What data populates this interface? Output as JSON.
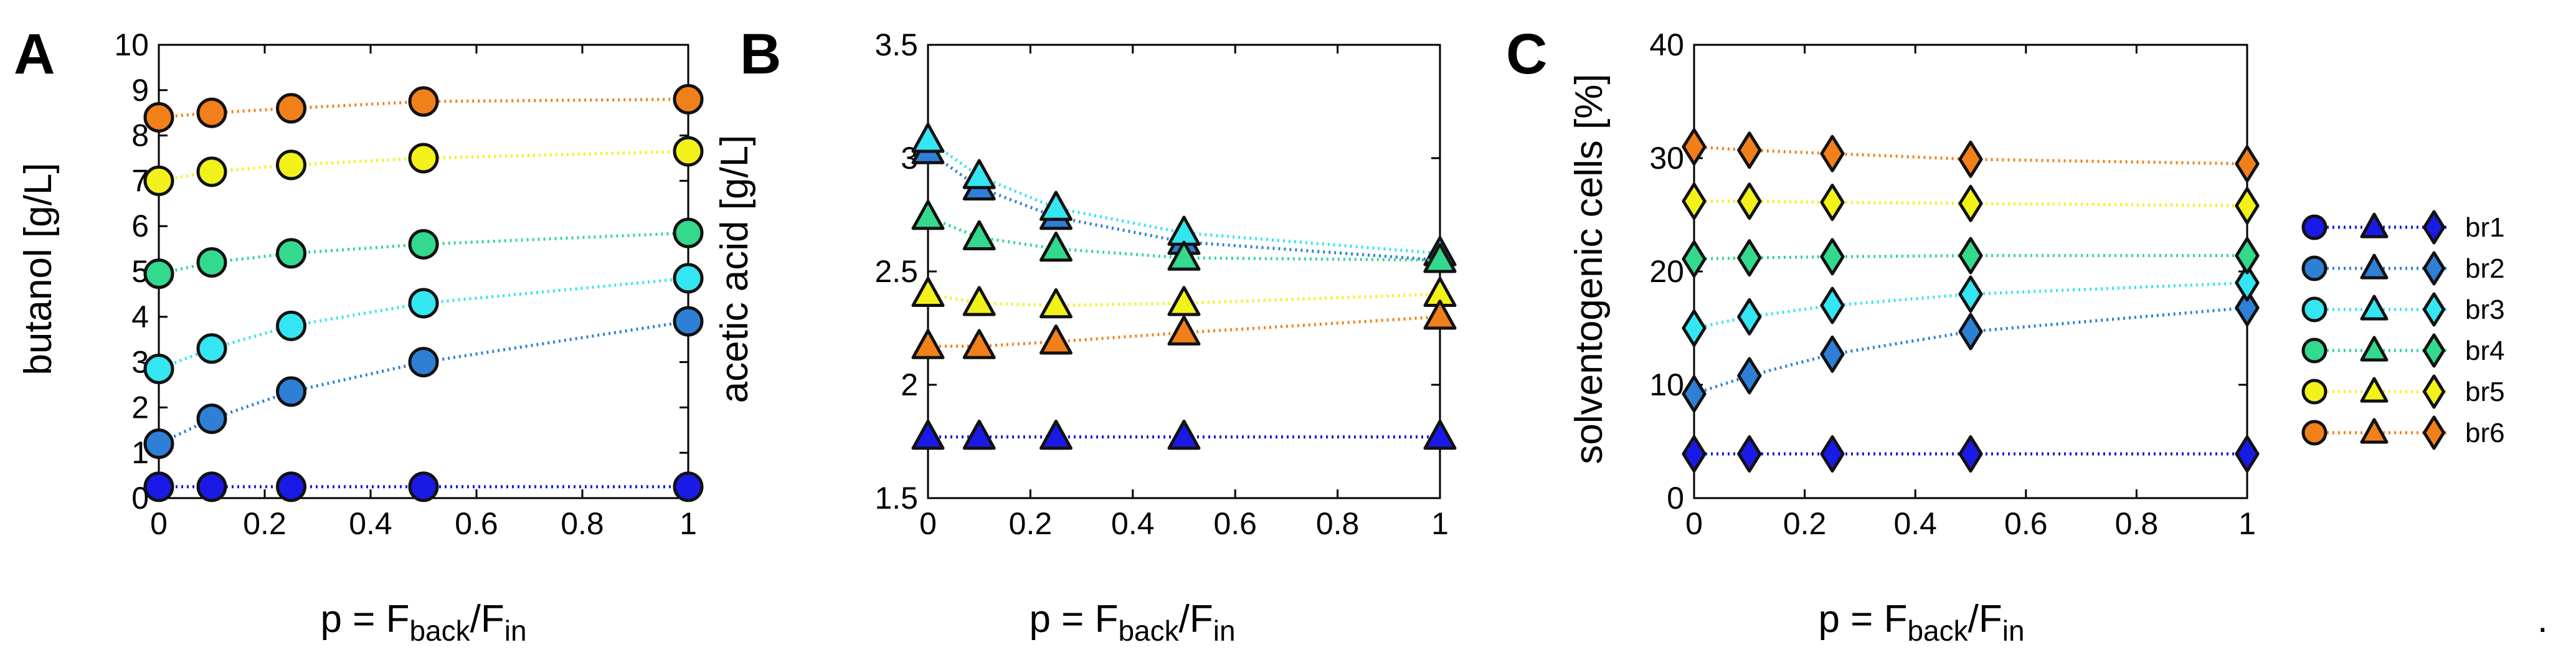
{
  "x_values": [
    0,
    0.1,
    0.25,
    0.5,
    1
  ],
  "xlabel_parts": {
    "main": "p = F",
    "sub1": "back",
    "slash": "/F",
    "sub2": "in"
  },
  "stray_text": ".",
  "series_names": [
    "br1",
    "br2",
    "br3",
    "br4",
    "br5",
    "br6"
  ],
  "series_colors": {
    "br1": "#1a1ae6",
    "br2": "#2e7fd6",
    "br3": "#33e6f2",
    "br4": "#33d98c",
    "br5": "#f2f21a",
    "br6": "#f2801a"
  },
  "chart_data": [
    {
      "type": "line",
      "panel": "A",
      "ylabel": "butanol [g/L]",
      "xlim": [
        0,
        1
      ],
      "ylim": [
        0,
        10
      ],
      "xticks": [
        "0",
        "0.2",
        "0.4",
        "0.6",
        "0.8",
        "1"
      ],
      "yticks": [
        "0",
        "1",
        "2",
        "3",
        "4",
        "5",
        "6",
        "7",
        "8",
        "9",
        "10"
      ],
      "marker": "circle",
      "series": [
        {
          "name": "br1",
          "values": [
            0.25,
            0.25,
            0.25,
            0.25,
            0.25
          ]
        },
        {
          "name": "br2",
          "values": [
            1.2,
            1.75,
            2.35,
            3.0,
            3.9
          ]
        },
        {
          "name": "br3",
          "values": [
            2.85,
            3.3,
            3.8,
            4.3,
            4.85
          ]
        },
        {
          "name": "br4",
          "values": [
            4.95,
            5.2,
            5.4,
            5.6,
            5.85
          ]
        },
        {
          "name": "br5",
          "values": [
            7.0,
            7.2,
            7.35,
            7.5,
            7.65
          ]
        },
        {
          "name": "br6",
          "values": [
            8.4,
            8.5,
            8.6,
            8.75,
            8.8
          ]
        }
      ]
    },
    {
      "type": "line",
      "panel": "B",
      "ylabel": "acetic acid [g/L]",
      "xlim": [
        0,
        1
      ],
      "ylim": [
        1.5,
        3.5
      ],
      "xticks": [
        "0",
        "0.2",
        "0.4",
        "0.6",
        "0.8",
        "1"
      ],
      "yticks": [
        "1.5",
        "2",
        "2.5",
        "3",
        "3.5"
      ],
      "marker": "triangle",
      "series": [
        {
          "name": "br1",
          "values": [
            1.77,
            1.77,
            1.77,
            1.77,
            1.77
          ]
        },
        {
          "name": "br2",
          "values": [
            3.03,
            2.87,
            2.74,
            2.63,
            2.55
          ]
        },
        {
          "name": "br3",
          "values": [
            3.08,
            2.92,
            2.78,
            2.67,
            2.58
          ]
        },
        {
          "name": "br4",
          "values": [
            2.74,
            2.65,
            2.6,
            2.56,
            2.55
          ]
        },
        {
          "name": "br5",
          "values": [
            2.4,
            2.36,
            2.35,
            2.36,
            2.4
          ]
        },
        {
          "name": "br6",
          "values": [
            2.17,
            2.17,
            2.19,
            2.23,
            2.3
          ]
        }
      ]
    },
    {
      "type": "line",
      "panel": "C",
      "ylabel": "solventogenic cells [%]",
      "xlim": [
        0,
        1
      ],
      "ylim": [
        0,
        40
      ],
      "xticks": [
        "0",
        "0.2",
        "0.4",
        "0.6",
        "0.8",
        "1"
      ],
      "yticks": [
        "0",
        "10",
        "20",
        "30",
        "40"
      ],
      "marker": "diamond",
      "series": [
        {
          "name": "br1",
          "values": [
            3.9,
            3.9,
            3.9,
            3.9,
            3.9
          ]
        },
        {
          "name": "br2",
          "values": [
            9.2,
            10.8,
            12.7,
            14.7,
            16.8
          ]
        },
        {
          "name": "br3",
          "values": [
            15.0,
            16.0,
            17.0,
            18.0,
            19.0
          ]
        },
        {
          "name": "br4",
          "values": [
            21.1,
            21.2,
            21.3,
            21.4,
            21.4
          ]
        },
        {
          "name": "br5",
          "values": [
            26.2,
            26.2,
            26.1,
            26.0,
            25.8
          ]
        },
        {
          "name": "br6",
          "values": [
            31.0,
            30.7,
            30.4,
            29.9,
            29.5
          ]
        }
      ]
    }
  ]
}
